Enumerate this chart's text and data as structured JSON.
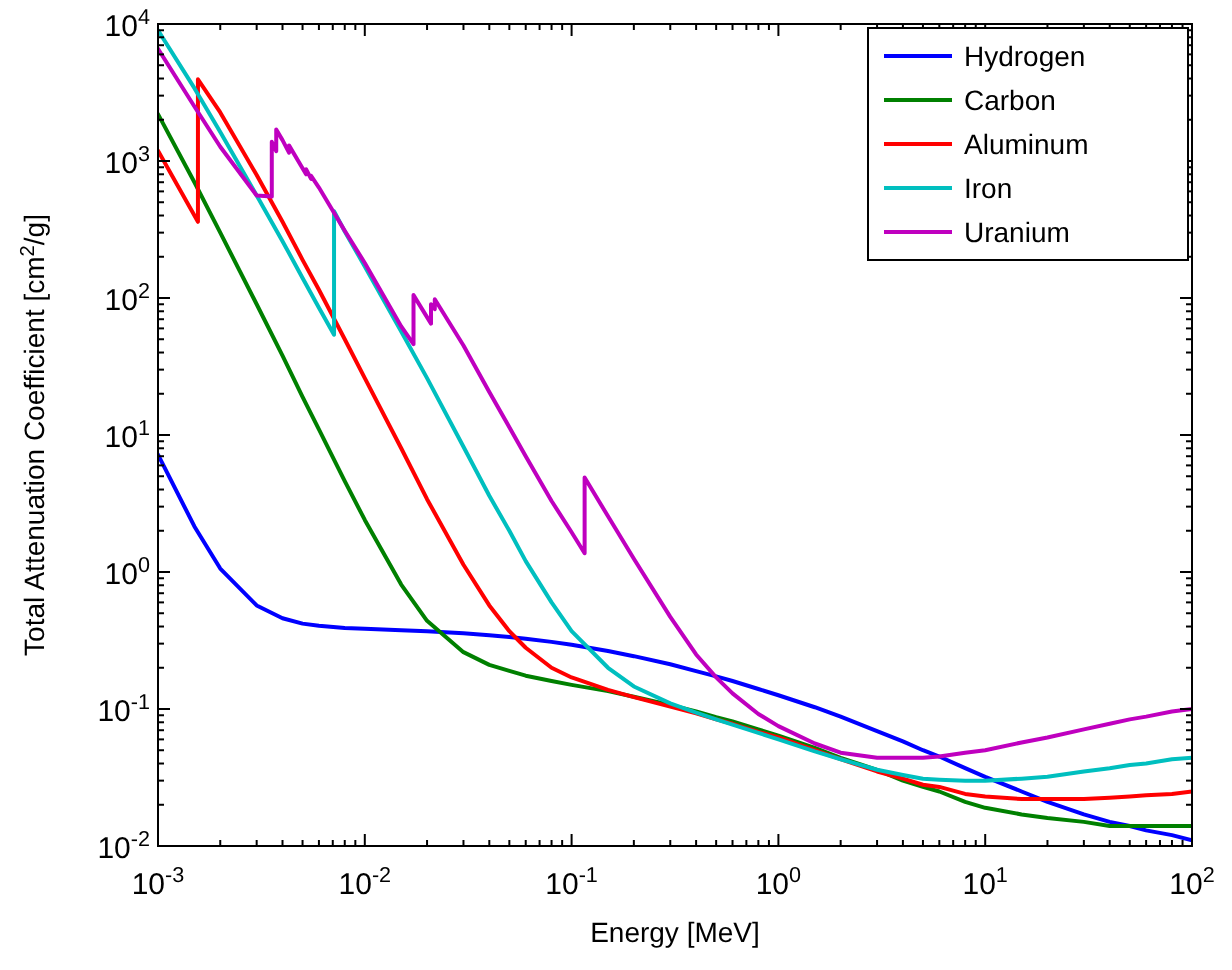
{
  "chart_data": {
    "type": "line",
    "xlabel": "Energy [MeV]",
    "ylabel": "Total Attenuation Coefficient [cm$^{2}$/g]",
    "log": "xy",
    "grid": false,
    "legend": "top right",
    "line_style": "solid",
    "xlim": [
      0.001,
      100
    ],
    "ylim": [
      0.01,
      10000
    ],
    "xticks": [
      {
        "value": 0.001,
        "label": "10$^{-3}$"
      },
      {
        "value": 0.002,
        "label": null
      },
      {
        "value": 0.003,
        "label": null
      },
      {
        "value": 0.004,
        "label": null
      },
      {
        "value": 0.005,
        "label": null
      },
      {
        "value": 0.006,
        "label": null
      },
      {
        "value": 0.007,
        "label": null
      },
      {
        "value": 0.008,
        "label": null
      },
      {
        "value": 0.009,
        "label": null
      },
      {
        "value": 0.01,
        "label": "10$^{-2}$"
      },
      {
        "value": 0.02,
        "label": null
      },
      {
        "value": 0.03,
        "label": null
      },
      {
        "value": 0.04,
        "label": null
      },
      {
        "value": 0.05,
        "label": null
      },
      {
        "value": 0.06,
        "label": null
      },
      {
        "value": 0.07,
        "label": null
      },
      {
        "value": 0.08,
        "label": null
      },
      {
        "value": 0.09,
        "label": null
      },
      {
        "value": 0.1,
        "label": "10$^{-1}$"
      },
      {
        "value": 0.2,
        "label": null
      },
      {
        "value": 0.3,
        "label": null
      },
      {
        "value": 0.4,
        "label": null
      },
      {
        "value": 0.5,
        "label": null
      },
      {
        "value": 0.6,
        "label": null
      },
      {
        "value": 0.7,
        "label": null
      },
      {
        "value": 0.8,
        "label": null
      },
      {
        "value": 0.9,
        "label": null
      },
      {
        "value": 1,
        "label": "10$^{0}$"
      },
      {
        "value": 2,
        "label": null
      },
      {
        "value": 3,
        "label": null
      },
      {
        "value": 4,
        "label": null
      },
      {
        "value": 5,
        "label": null
      },
      {
        "value": 6,
        "label": null
      },
      {
        "value": 7,
        "label": null
      },
      {
        "value": 8,
        "label": null
      },
      {
        "value": 9,
        "label": null
      },
      {
        "value": 10,
        "label": "10$^{1}$"
      },
      {
        "value": 20,
        "label": null
      },
      {
        "value": 30,
        "label": null
      },
      {
        "value": 40,
        "label": null
      },
      {
        "value": 50,
        "label": null
      },
      {
        "value": 60,
        "label": null
      },
      {
        "value": 70,
        "label": null
      },
      {
        "value": 80,
        "label": null
      },
      {
        "value": 90,
        "label": null
      },
      {
        "value": 100,
        "label": "10$^{2}$"
      }
    ],
    "yticks": [
      {
        "value": 0.01,
        "label": "10$^{-2}$"
      },
      {
        "value": 0.02,
        "label": null
      },
      {
        "value": 0.03,
        "label": null
      },
      {
        "value": 0.04,
        "label": null
      },
      {
        "value": 0.05,
        "label": null
      },
      {
        "value": 0.06,
        "label": null
      },
      {
        "value": 0.07,
        "label": null
      },
      {
        "value": 0.08,
        "label": null
      },
      {
        "value": 0.09,
        "label": null
      },
      {
        "value": 0.1,
        "label": "10$^{-1}$"
      },
      {
        "value": 0.2,
        "label": null
      },
      {
        "value": 0.3,
        "label": null
      },
      {
        "value": 0.4,
        "label": null
      },
      {
        "value": 0.5,
        "label": null
      },
      {
        "value": 0.6,
        "label": null
      },
      {
        "value": 0.7,
        "label": null
      },
      {
        "value": 0.8,
        "label": null
      },
      {
        "value": 0.9,
        "label": null
      },
      {
        "value": 1,
        "label": "10$^{0}$"
      },
      {
        "value": 2,
        "label": null
      },
      {
        "value": 3,
        "label": null
      },
      {
        "value": 4,
        "label": null
      },
      {
        "value": 5,
        "label": null
      },
      {
        "value": 6,
        "label": null
      },
      {
        "value": 7,
        "label": null
      },
      {
        "value": 8,
        "label": null
      },
      {
        "value": 9,
        "label": null
      },
      {
        "value": 10,
        "label": "10$^{1}$"
      },
      {
        "value": 20,
        "label": null
      },
      {
        "value": 30,
        "label": null
      },
      {
        "value": 40,
        "label": null
      },
      {
        "value": 50,
        "label": null
      },
      {
        "value": 60,
        "label": null
      },
      {
        "value": 70,
        "label": null
      },
      {
        "value": 80,
        "label": null
      },
      {
        "value": 90,
        "label": null
      },
      {
        "value": 100,
        "label": "10$^{2}$"
      },
      {
        "value": 200,
        "label": null
      },
      {
        "value": 300,
        "label": null
      },
      {
        "value": 400,
        "label": null
      },
      {
        "value": 500,
        "label": null
      },
      {
        "value": 600,
        "label": null
      },
      {
        "value": 700,
        "label": null
      },
      {
        "value": 800,
        "label": null
      },
      {
        "value": 900,
        "label": null
      },
      {
        "value": 1000,
        "label": "10$^{3}$"
      },
      {
        "value": 2000,
        "label": null
      },
      {
        "value": 3000,
        "label": null
      },
      {
        "value": 4000,
        "label": null
      },
      {
        "value": 5000,
        "label": null
      },
      {
        "value": 6000,
        "label": null
      },
      {
        "value": 7000,
        "label": null
      },
      {
        "value": 8000,
        "label": null
      },
      {
        "value": 9000,
        "label": null
      },
      {
        "value": 10000,
        "label": "10$^{4}$"
      }
    ],
    "series": [
      {
        "name": "Hydrogen",
        "color": "#0000ff",
        "x": [
          0.001,
          0.0015,
          0.002,
          0.003,
          0.004,
          0.005,
          0.006,
          0.008,
          0.01,
          0.015,
          0.02,
          0.03,
          0.04,
          0.05,
          0.06,
          0.08,
          0.1,
          0.15,
          0.2,
          0.3,
          0.4,
          0.5,
          0.6,
          0.8,
          1,
          1.5,
          2,
          3,
          4,
          5,
          6,
          8,
          10,
          15,
          20,
          30,
          40,
          50,
          60,
          80,
          100
        ],
        "values": [
          7.2,
          2.15,
          1.06,
          0.57,
          0.46,
          0.42,
          0.405,
          0.39,
          0.385,
          0.376,
          0.369,
          0.357,
          0.346,
          0.336,
          0.326,
          0.309,
          0.294,
          0.265,
          0.243,
          0.212,
          0.189,
          0.173,
          0.16,
          0.14,
          0.126,
          0.103,
          0.088,
          0.069,
          0.058,
          0.05,
          0.045,
          0.037,
          0.032,
          0.025,
          0.021,
          0.017,
          0.015,
          0.014,
          0.013,
          0.012,
          0.011
        ]
      },
      {
        "name": "Carbon",
        "color": "#008000",
        "x": [
          0.001,
          0.0015,
          0.002,
          0.003,
          0.004,
          0.005,
          0.006,
          0.008,
          0.01,
          0.015,
          0.02,
          0.03,
          0.04,
          0.05,
          0.06,
          0.08,
          0.1,
          0.15,
          0.2,
          0.3,
          0.4,
          0.5,
          0.6,
          0.8,
          1,
          1.5,
          2,
          3,
          4,
          5,
          6,
          8,
          10,
          15,
          20,
          30,
          40,
          50,
          60,
          80,
          100
        ],
        "values": [
          2200,
          700,
          300,
          90,
          38,
          19,
          11,
          4.6,
          2.4,
          0.81,
          0.44,
          0.26,
          0.21,
          0.19,
          0.175,
          0.16,
          0.15,
          0.135,
          0.123,
          0.107,
          0.096,
          0.087,
          0.081,
          0.071,
          0.064,
          0.052,
          0.044,
          0.036,
          0.03,
          0.027,
          0.025,
          0.021,
          0.019,
          0.017,
          0.016,
          0.015,
          0.014,
          0.014,
          0.014,
          0.014,
          0.014
        ]
      },
      {
        "name": "Aluminum",
        "color": "#ff0000",
        "x": [
          0.001,
          0.0015,
          0.00156,
          0.00156,
          0.002,
          0.003,
          0.004,
          0.005,
          0.006,
          0.008,
          0.01,
          0.015,
          0.02,
          0.03,
          0.04,
          0.05,
          0.06,
          0.08,
          0.1,
          0.15,
          0.2,
          0.3,
          0.4,
          0.5,
          0.6,
          0.8,
          1,
          1.5,
          2,
          3,
          4,
          5,
          6,
          8,
          10,
          15,
          20,
          30,
          40,
          50,
          60,
          80,
          100
        ],
        "values": [
          1190,
          400,
          360,
          3950,
          2260,
          790,
          360,
          190,
          115,
          50,
          26,
          8,
          3.4,
          1.13,
          0.57,
          0.37,
          0.28,
          0.2,
          0.17,
          0.138,
          0.122,
          0.104,
          0.093,
          0.084,
          0.078,
          0.068,
          0.062,
          0.05,
          0.043,
          0.035,
          0.031,
          0.028,
          0.027,
          0.024,
          0.023,
          0.022,
          0.022,
          0.022,
          0.0225,
          0.023,
          0.0235,
          0.024,
          0.025
        ]
      },
      {
        "name": "Iron",
        "color": "#00bfbf",
        "x": [
          0.001,
          0.0015,
          0.002,
          0.003,
          0.004,
          0.005,
          0.006,
          0.0071,
          0.0071,
          0.008,
          0.01,
          0.015,
          0.02,
          0.03,
          0.04,
          0.05,
          0.06,
          0.08,
          0.1,
          0.15,
          0.2,
          0.3,
          0.4,
          0.5,
          0.6,
          0.8,
          1,
          1.5,
          2,
          3,
          4,
          5,
          6,
          8,
          10,
          15,
          20,
          30,
          40,
          50,
          60,
          80,
          100
        ],
        "values": [
          9000,
          3400,
          1630,
          560,
          260,
          140,
          85,
          54,
          430,
          306,
          170,
          57,
          26,
          8.2,
          3.6,
          2,
          1.2,
          0.6,
          0.37,
          0.2,
          0.146,
          0.11,
          0.094,
          0.084,
          0.077,
          0.067,
          0.06,
          0.049,
          0.043,
          0.036,
          0.033,
          0.031,
          0.0305,
          0.03,
          0.03,
          0.031,
          0.032,
          0.035,
          0.037,
          0.039,
          0.04,
          0.043,
          0.044
        ]
      },
      {
        "name": "Uranium",
        "color": "#bf00bf",
        "x": [
          0.001,
          0.0015,
          0.002,
          0.003,
          0.00355,
          0.00355,
          0.00373,
          0.00373,
          0.004,
          0.0043,
          0.0043,
          0.0052,
          0.0052,
          0.0055,
          0.0055,
          0.006,
          0.008,
          0.01,
          0.015,
          0.0172,
          0.0172,
          0.0209,
          0.0209,
          0.0218,
          0.0218,
          0.03,
          0.04,
          0.05,
          0.06,
          0.08,
          0.1,
          0.1156,
          0.1156,
          0.15,
          0.2,
          0.3,
          0.4,
          0.5,
          0.6,
          0.8,
          1,
          1.5,
          2,
          3,
          4,
          5,
          6,
          8,
          10,
          15,
          20,
          30,
          40,
          50,
          60,
          80,
          100
        ],
        "values": [
          6600,
          2500,
          1270,
          560,
          550,
          1380,
          1180,
          1700,
          1420,
          1150,
          1300,
          800,
          870,
          740,
          780,
          640,
          310,
          180,
          62,
          46,
          105,
          65,
          90,
          83,
          98,
          45,
          20.6,
          11.4,
          7,
          3.3,
          1.95,
          1.37,
          4.9,
          2.55,
          1.25,
          0.47,
          0.25,
          0.17,
          0.13,
          0.092,
          0.075,
          0.056,
          0.048,
          0.044,
          0.044,
          0.044,
          0.045,
          0.048,
          0.05,
          0.057,
          0.062,
          0.071,
          0.078,
          0.084,
          0.088,
          0.096,
          0.1
        ]
      }
    ]
  }
}
